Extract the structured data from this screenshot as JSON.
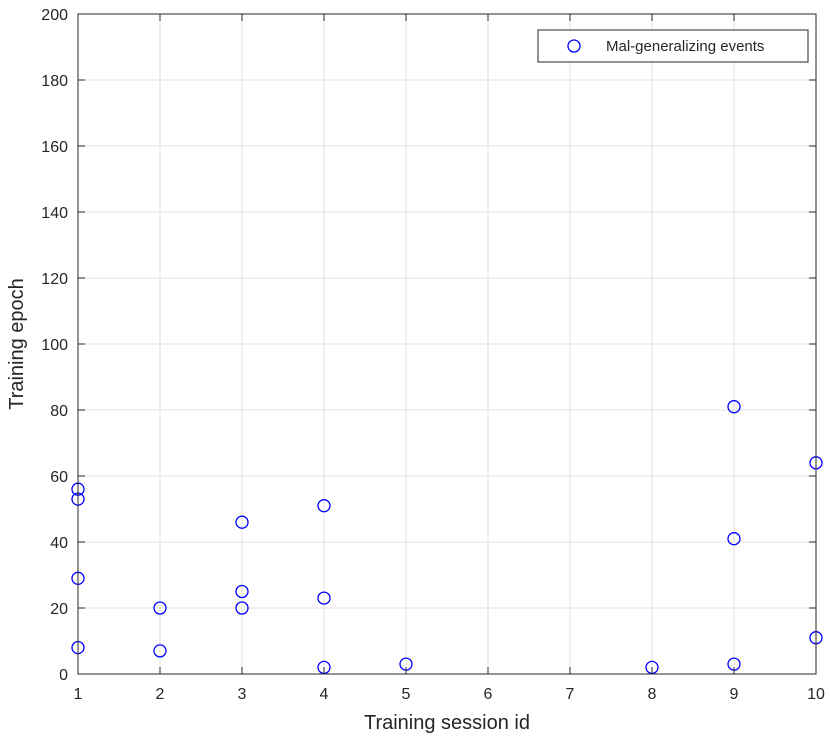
{
  "chart_data": {
    "type": "scatter",
    "xlabel": "Training session id",
    "ylabel": "Training epoch",
    "xlim": [
      1,
      10
    ],
    "ylim": [
      0,
      200
    ],
    "xticks": [
      1,
      2,
      3,
      4,
      5,
      6,
      7,
      8,
      9,
      10
    ],
    "yticks": [
      0,
      20,
      40,
      60,
      80,
      100,
      120,
      140,
      160,
      180,
      200
    ],
    "grid": true,
    "legend_position": "top-right",
    "series": [
      {
        "name": "Mal-generalizing events",
        "marker": "circle-open",
        "color": "#0000ff",
        "points": [
          {
            "x": 1,
            "y": 56
          },
          {
            "x": 1,
            "y": 53
          },
          {
            "x": 1,
            "y": 29
          },
          {
            "x": 1,
            "y": 8
          },
          {
            "x": 2,
            "y": 20
          },
          {
            "x": 2,
            "y": 7
          },
          {
            "x": 3,
            "y": 46
          },
          {
            "x": 3,
            "y": 25
          },
          {
            "x": 3,
            "y": 20
          },
          {
            "x": 4,
            "y": 51
          },
          {
            "x": 4,
            "y": 23
          },
          {
            "x": 4,
            "y": 2
          },
          {
            "x": 5,
            "y": 3
          },
          {
            "x": 8,
            "y": 2
          },
          {
            "x": 9,
            "y": 81
          },
          {
            "x": 9,
            "y": 41
          },
          {
            "x": 9,
            "y": 3
          },
          {
            "x": 10,
            "y": 64
          },
          {
            "x": 10,
            "y": 11
          }
        ]
      }
    ]
  }
}
